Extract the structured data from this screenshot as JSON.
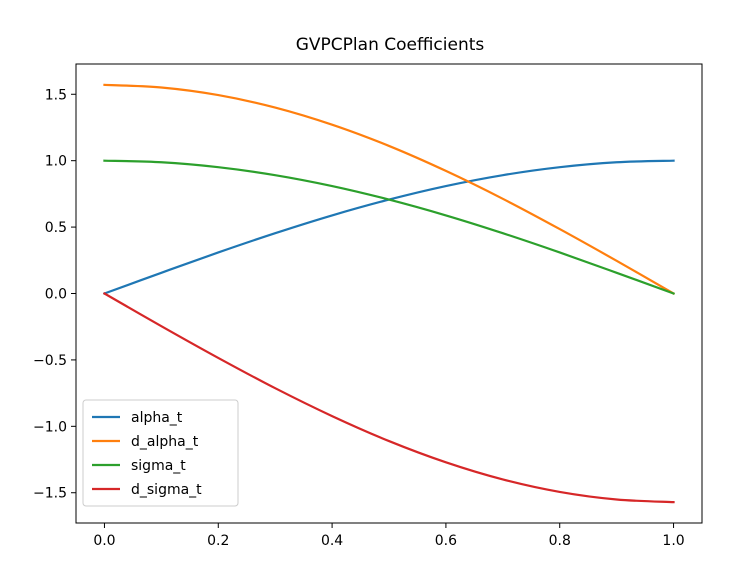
{
  "chart_data": {
    "type": "line",
    "title": "GVPCPlan Coefficients",
    "xlabel": "",
    "ylabel": "",
    "xlim": [
      -0.05,
      1.05
    ],
    "ylim": [
      -1.727876,
      1.727876
    ],
    "xticks": [
      0.0,
      0.2,
      0.4,
      0.6,
      0.8,
      1.0
    ],
    "xtick_labels": [
      "0.0",
      "0.2",
      "0.4",
      "0.6",
      "0.8",
      "1.0"
    ],
    "yticks": [
      -1.5,
      -1.0,
      -0.5,
      0.0,
      0.5,
      1.0,
      1.5
    ],
    "ytick_labels": [
      "−1.5",
      "−1.0",
      "−0.5",
      "0.0",
      "0.5",
      "1.0",
      "1.5"
    ],
    "grid": false,
    "legend_position": "lower-left",
    "x": [
      0.0,
      0.1,
      0.2,
      0.3,
      0.4,
      0.5,
      0.6,
      0.7,
      0.8,
      0.9,
      1.0
    ],
    "series": [
      {
        "name": "alpha_t",
        "color": "#1f77b4",
        "values": [
          0.0,
          0.156,
          0.309,
          0.454,
          0.588,
          0.707,
          0.809,
          0.891,
          0.951,
          0.988,
          1.0
        ]
      },
      {
        "name": "d_alpha_t",
        "color": "#ff7f0e",
        "values": [
          1.571,
          1.551,
          1.494,
          1.4,
          1.271,
          1.111,
          0.923,
          0.713,
          0.485,
          0.246,
          0.0
        ]
      },
      {
        "name": "sigma_t",
        "color": "#2ca02c",
        "values": [
          1.0,
          0.988,
          0.951,
          0.891,
          0.809,
          0.707,
          0.588,
          0.454,
          0.309,
          0.156,
          0.0
        ]
      },
      {
        "name": "d_sigma_t",
        "color": "#d62728",
        "values": [
          0.0,
          -0.246,
          -0.485,
          -0.713,
          -0.923,
          -1.111,
          -1.271,
          -1.4,
          -1.494,
          -1.551,
          -1.571
        ]
      }
    ]
  }
}
